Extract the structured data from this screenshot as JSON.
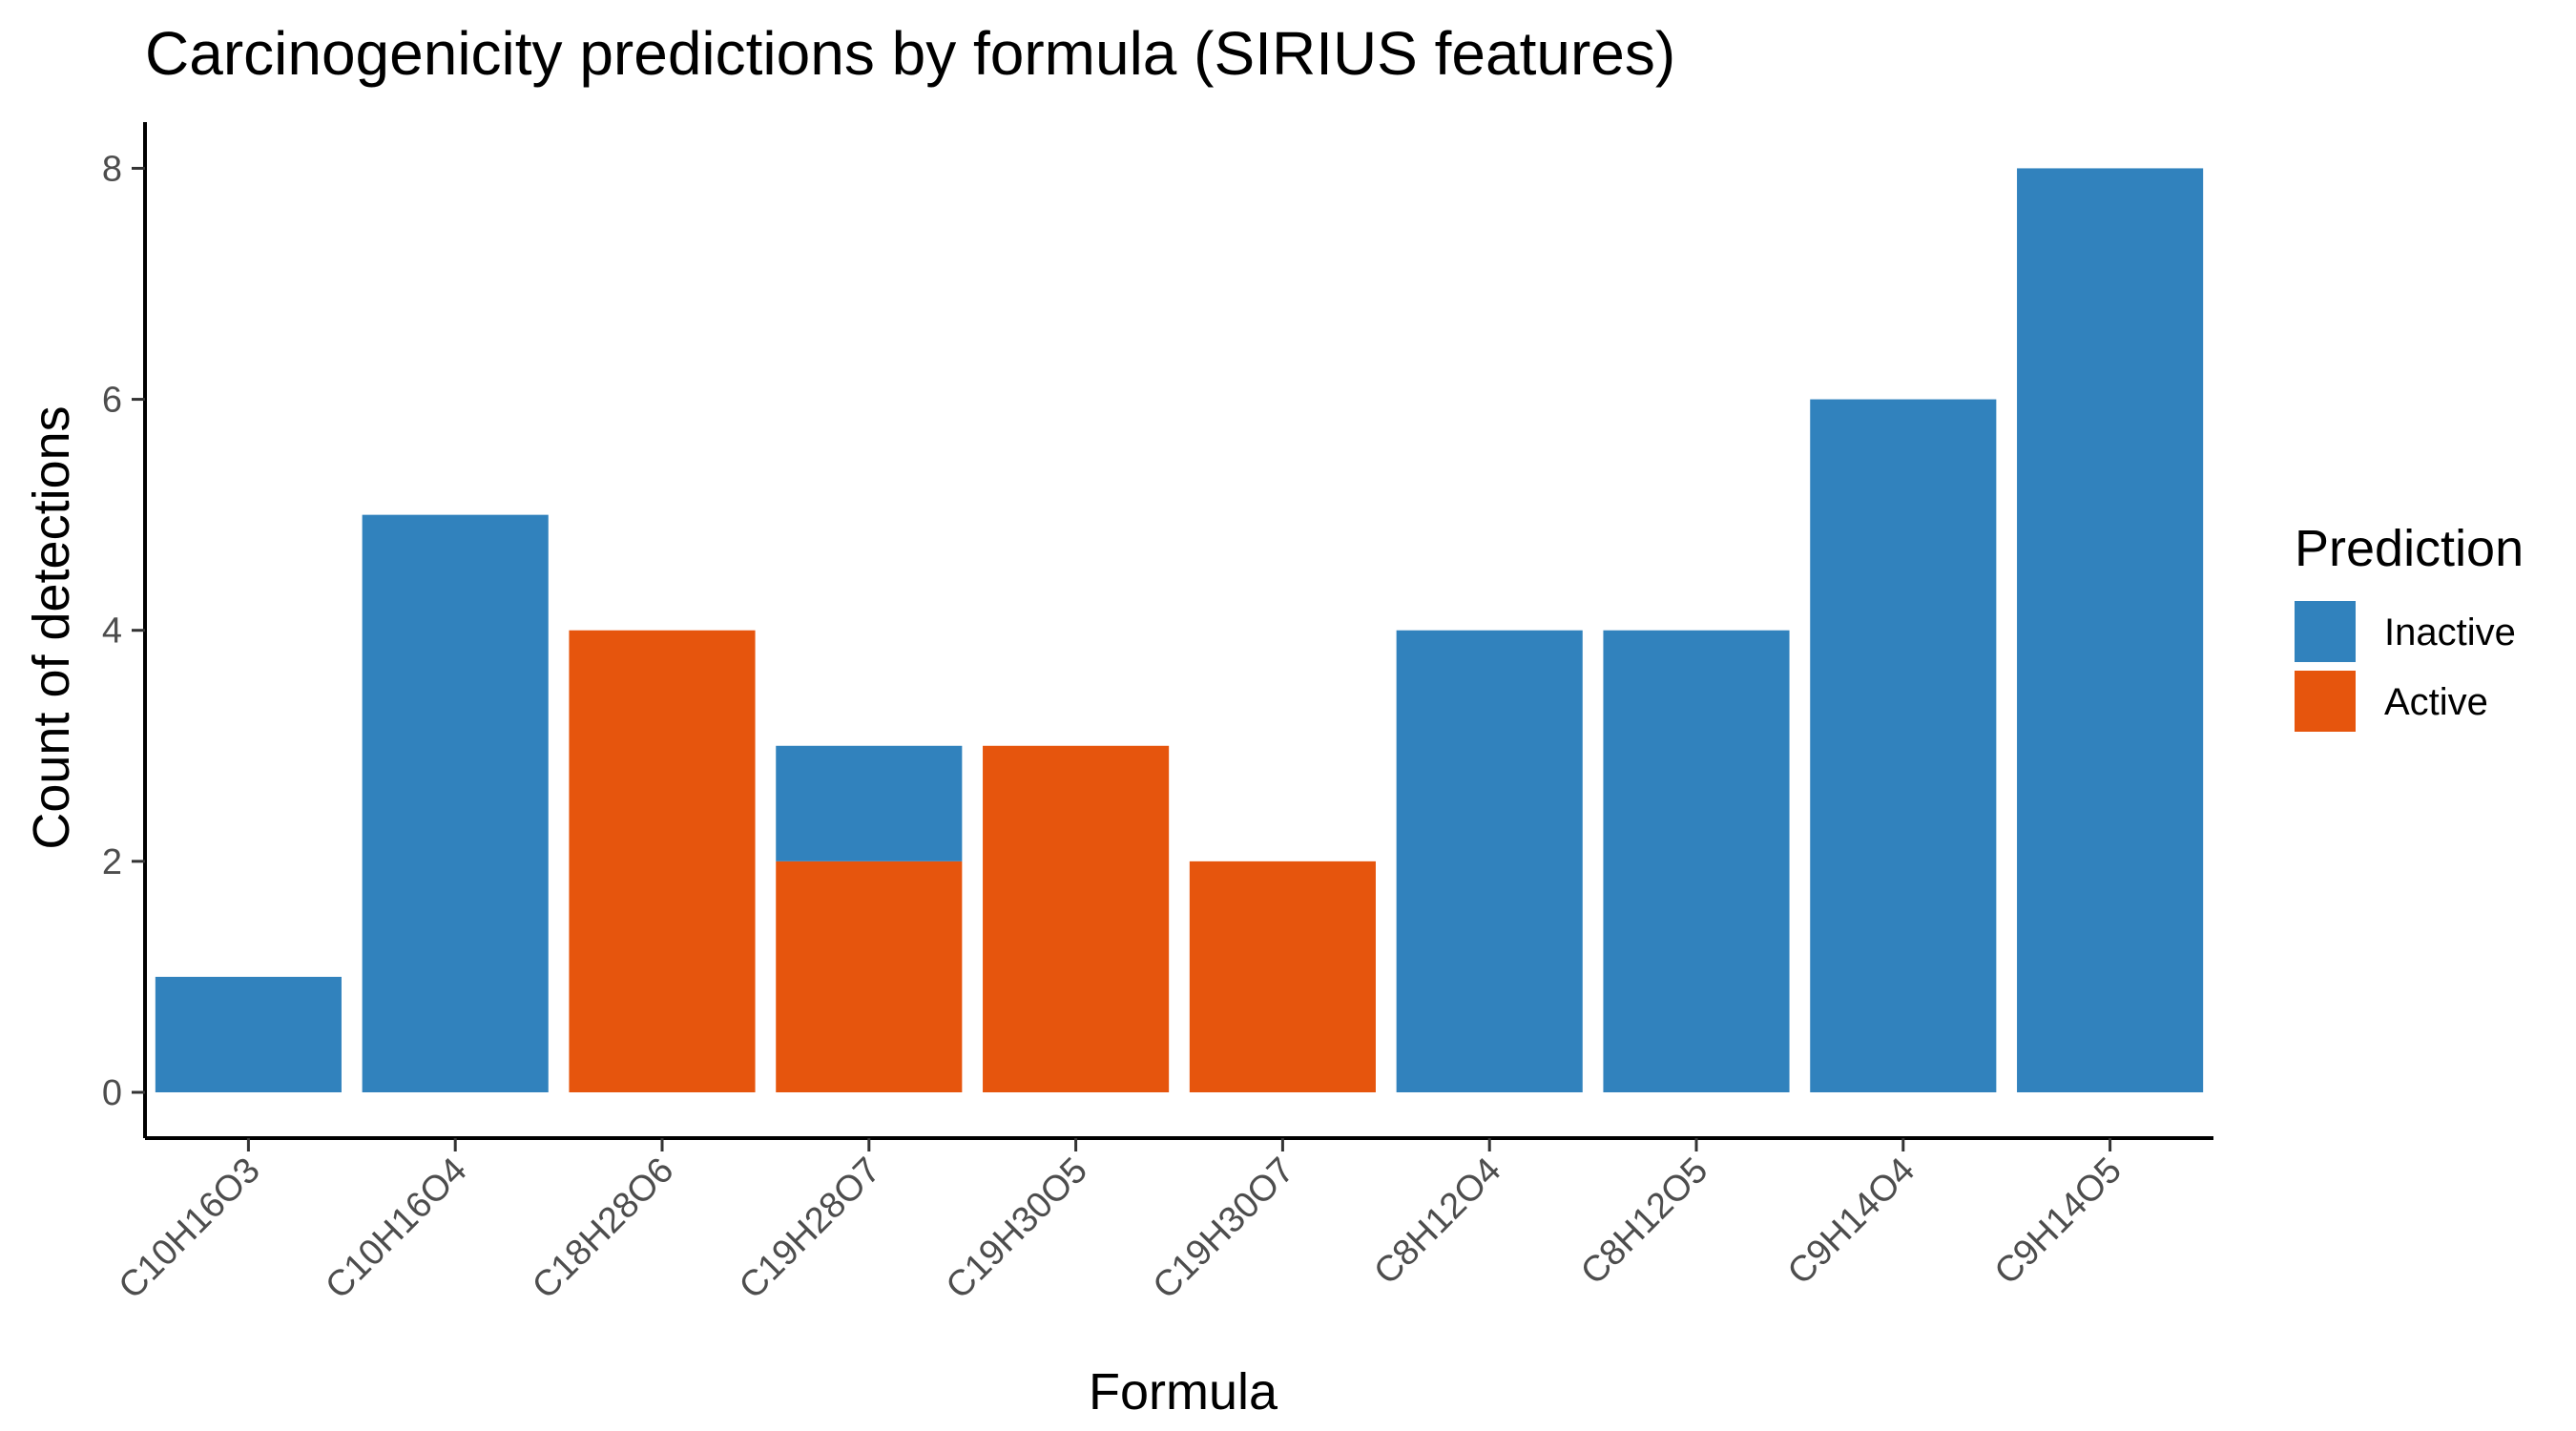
{
  "chart_data": {
    "type": "bar",
    "stacked": true,
    "title": "Carcinogenicity predictions by formula (SIRIUS features)",
    "xlabel": "Formula",
    "ylabel": "Count of detections",
    "categories": [
      "C10H16O3",
      "C10H16O4",
      "C18H28O6",
      "C19H28O7",
      "C19H30O5",
      "C19H30O7",
      "C8H12O4",
      "C8H12O5",
      "C9H14O4",
      "C9H14O5"
    ],
    "series": [
      {
        "name": "Inactive",
        "color": "#3182bd",
        "values": [
          1,
          5,
          0,
          1,
          0,
          0,
          4,
          4,
          6,
          8
        ]
      },
      {
        "name": "Active",
        "color": "#e6550d",
        "values": [
          0,
          0,
          4,
          2,
          3,
          2,
          0,
          0,
          0,
          0
        ]
      }
    ],
    "stack_order_bottom_to_top": [
      "Active",
      "Inactive"
    ],
    "ylim": [
      0,
      8.4
    ],
    "yticks": [
      0,
      2,
      4,
      6,
      8
    ],
    "grid": false,
    "legend": {
      "title": "Prediction",
      "placement": "right",
      "items": [
        "Inactive",
        "Active"
      ]
    }
  }
}
